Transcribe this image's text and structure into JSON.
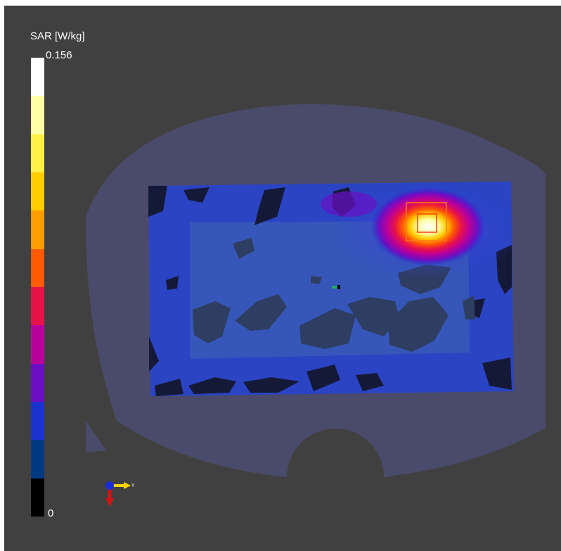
{
  "legend": {
    "title": "SAR [W/kg]",
    "max_label": "0.156",
    "min_label": "0",
    "max_value": 0.156,
    "min_value": 0,
    "colors": [
      "#ffffff",
      "#ffffa6",
      "#fff046",
      "#ffcc00",
      "#ff9c00",
      "#ff5a00",
      "#e8124a",
      "#b8009b",
      "#6a0fc4",
      "#1a32d0",
      "#003a82",
      "#000000"
    ]
  },
  "scene": {
    "phantom_color": "#4a4b6a",
    "axis_label": "Y"
  }
}
